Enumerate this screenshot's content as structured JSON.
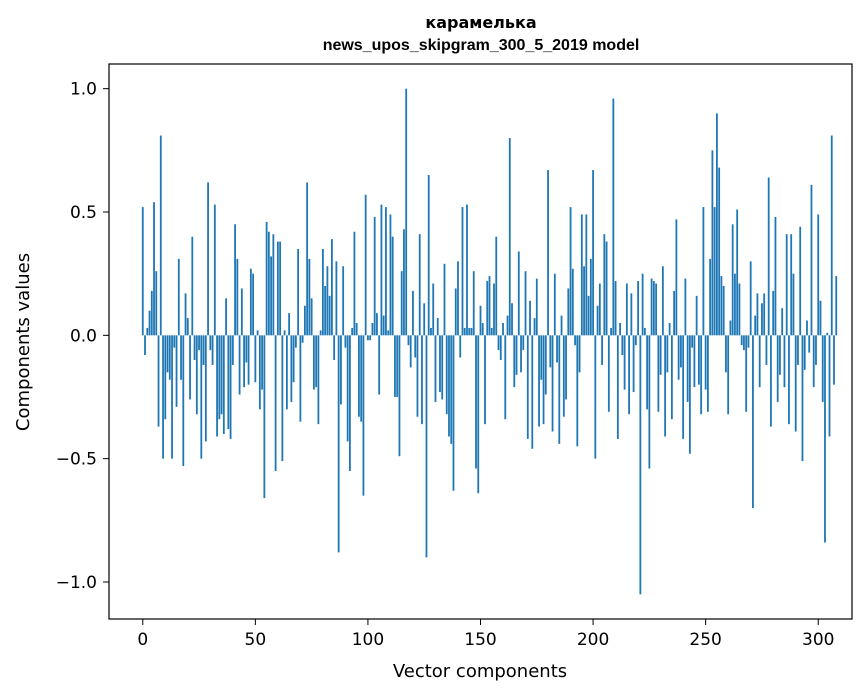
{
  "chart_data": {
    "type": "bar",
    "title": "карамелька",
    "subtitle": "news_upos_skipgram_300_5_2019 model",
    "xlabel": "Vector components",
    "ylabel": "Components values",
    "xlim": [
      -15,
      315
    ],
    "ylim": [
      -1.15,
      1.1
    ],
    "xticks": [
      0,
      50,
      100,
      150,
      200,
      250,
      300
    ],
    "xtick_labels": [
      "0",
      "50",
      "100",
      "150",
      "200",
      "250",
      "300"
    ],
    "yticks": [
      1.0,
      0.5,
      0.0,
      -0.5,
      -1.0
    ],
    "ytick_labels": [
      "1.0",
      "0.5",
      "0.0",
      "−0.5",
      "−1.0"
    ],
    "bar_color": "#1f77b4",
    "grid": false,
    "legend": false,
    "values": [
      0.52,
      -0.08,
      0.03,
      0.1,
      0.18,
      0.54,
      0.26,
      -0.37,
      0.81,
      -0.5,
      -0.34,
      -0.15,
      -0.18,
      -0.5,
      -0.05,
      -0.29,
      0.31,
      -0.18,
      -0.53,
      0.17,
      0.07,
      -0.26,
      0.4,
      -0.1,
      -0.32,
      -0.06,
      -0.5,
      -0.12,
      -0.43,
      0.62,
      -0.06,
      -0.12,
      0.53,
      -0.41,
      -0.34,
      -0.32,
      -0.4,
      0.15,
      -0.38,
      -0.42,
      -0.12,
      0.45,
      0.31,
      -0.24,
      0.19,
      -0.21,
      -0.11,
      -0.2,
      0.27,
      0.25,
      -0.19,
      0.02,
      -0.3,
      -0.22,
      -0.66,
      0.46,
      0.42,
      0.32,
      0.41,
      -0.55,
      0.38,
      0.38,
      -0.51,
      0.02,
      -0.3,
      0.09,
      -0.27,
      -0.19,
      -0.05,
      0.35,
      -0.35,
      -0.03,
      0.12,
      0.62,
      0.31,
      0.15,
      -0.22,
      -0.21,
      -0.36,
      0.02,
      0.35,
      0.2,
      0.28,
      0.16,
      0.39,
      -0.1,
      0.3,
      -0.88,
      -0.28,
      0.28,
      -0.05,
      -0.43,
      -0.55,
      0.03,
      0.42,
      0.05,
      -0.33,
      -0.35,
      -0.65,
      0.57,
      -0.02,
      -0.02,
      0.05,
      0.48,
      0.09,
      -0.24,
      0.53,
      0.08,
      0.52,
      0.02,
      0.49,
      0.4,
      -0.25,
      -0.25,
      -0.49,
      0.26,
      0.43,
      1.0,
      -0.04,
      -0.13,
      0.18,
      -0.09,
      -0.33,
      0.41,
      -0.36,
      0.13,
      -0.9,
      0.65,
      0.03,
      0.21,
      -0.27,
      0.07,
      -0.23,
      -0.26,
      0.29,
      -0.32,
      -0.41,
      -0.44,
      -0.63,
      0.19,
      0.3,
      -0.09,
      0.52,
      0.03,
      0.53,
      0.03,
      0.03,
      0.26,
      -0.54,
      -0.64,
      0.12,
      0.05,
      -0.36,
      0.22,
      0.24,
      0.03,
      0.21,
      0.4,
      -0.06,
      -0.1,
      0.05,
      -0.34,
      0.08,
      0.8,
      0.13,
      -0.21,
      -0.16,
      0.34,
      -0.15,
      -0.06,
      0.26,
      -0.42,
      0.14,
      -0.46,
      0.07,
      0.23,
      -0.37,
      -0.18,
      -0.36,
      -0.24,
      0.67,
      -0.13,
      -0.39,
      0.25,
      -0.11,
      -0.44,
      0.08,
      -0.33,
      -0.26,
      0.19,
      0.52,
      0.27,
      -0.04,
      -0.45,
      -0.15,
      0.49,
      0.28,
      0.49,
      0.16,
      0.31,
      0.67,
      -0.5,
      0.12,
      0.21,
      -0.12,
      0.41,
      0.38,
      -0.31,
      0.03,
      0.96,
      0.22,
      -0.42,
      0.05,
      -0.08,
      -0.22,
      0.21,
      -0.32,
      0.17,
      -0.23,
      -0.04,
      0.22,
      -1.05,
      0.25,
      0.03,
      -0.3,
      -0.54,
      0.23,
      0.22,
      0.21,
      -0.31,
      -0.16,
      0.28,
      -0.41,
      -0.15,
      0.05,
      -0.34,
      0.18,
      0.47,
      -0.18,
      -0.13,
      -0.42,
      0.23,
      -0.27,
      -0.48,
      -0.05,
      -0.21,
      0.16,
      -0.2,
      -0.32,
      0.52,
      -0.22,
      -0.31,
      0.31,
      0.75,
      0.52,
      0.9,
      0.68,
      0.24,
      0.2,
      -0.15,
      -0.32,
      0.06,
      0.45,
      0.25,
      0.51,
      0.21,
      -0.04,
      -0.06,
      -0.31,
      -0.05,
      0.3,
      -0.7,
      0.08,
      0.17,
      -0.21,
      0.13,
      0.17,
      -0.12,
      0.64,
      -0.37,
      0.18,
      0.48,
      -0.27,
      -0.16,
      0.11,
      -0.21,
      0.41,
      -0.36,
      0.41,
      0.25,
      -0.39,
      -0.12,
      0.44,
      -0.51,
      -0.14,
      0.06,
      -0.07,
      0.61,
      -0.21,
      -0.12,
      0.49,
      0.14,
      -0.27,
      -0.84,
      0.01,
      -0.41,
      0.81,
      -0.2,
      0.24
    ]
  }
}
